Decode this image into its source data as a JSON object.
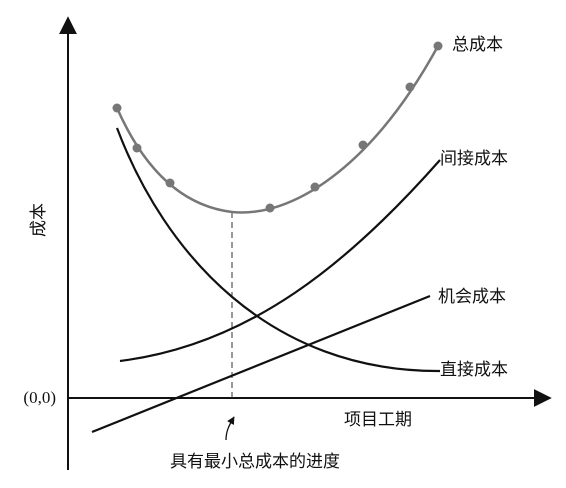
{
  "curves": {
    "total_cost": "总成本",
    "indirect_cost": "间接成本",
    "opportunity_cost": "机会成本",
    "direct_cost": "直接成本"
  },
  "axes": {
    "y_label": "成本",
    "origin": "(0,0)",
    "x_label": "项目工期"
  },
  "annotation": "具有最小总成本的进度"
}
